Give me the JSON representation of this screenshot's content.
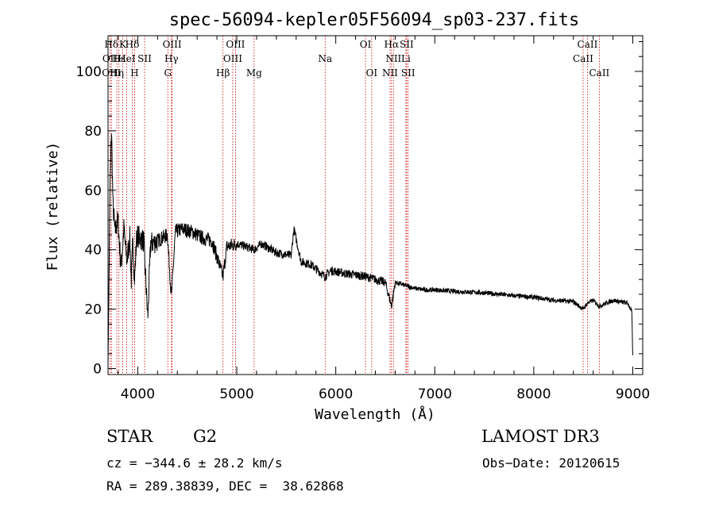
{
  "chart_data": {
    "type": "line",
    "title": "spec-56094-kepler05F56094_sp03-237.fits",
    "xlabel": "Wavelength (Å)",
    "ylabel": "Flux (relative)",
    "xlim": [
      3700,
      9100
    ],
    "ylim": [
      -2,
      112
    ],
    "xticks": [
      4000,
      5000,
      6000,
      7000,
      8000,
      9000
    ],
    "xtick_labels": [
      "4000",
      "5000",
      "6000",
      "7000",
      "8000",
      "9000"
    ],
    "yticks": [
      0,
      20,
      40,
      60,
      80,
      100
    ],
    "ytick_labels": [
      "0",
      "20",
      "40",
      "60",
      "80",
      "100"
    ],
    "grid": false,
    "spectrum_anchor_points": {
      "x": [
        3700,
        3720,
        3735,
        3750,
        3770,
        3800,
        3830,
        3860,
        3890,
        3920,
        3934,
        3950,
        3968,
        3990,
        4020,
        4060,
        4101,
        4130,
        4200,
        4300,
        4340,
        4380,
        4450,
        4550,
        4650,
        4750,
        4861,
        4900,
        5000,
        5100,
        5175,
        5250,
        5400,
        5550,
        5577,
        5650,
        5750,
        5890,
        5950,
        6100,
        6300,
        6400,
        6500,
        6563,
        6600,
        6700,
        6800,
        6900,
        7000,
        7200,
        7500,
        7800,
        8000,
        8200,
        8400,
        8498,
        8542,
        8600,
        8662,
        8800,
        8950,
        8990,
        9000
      ],
      "y": [
        1,
        62,
        80,
        55,
        46,
        50,
        34,
        47,
        36,
        44,
        29,
        42,
        30,
        45,
        44,
        43,
        17,
        42,
        43,
        45,
        24,
        46,
        47,
        46,
        44,
        43,
        31,
        41,
        42,
        41,
        40,
        42,
        39,
        38,
        47,
        36,
        35,
        31,
        33,
        32,
        31,
        30,
        29,
        21,
        29,
        28,
        27,
        26.5,
        26.5,
        26,
        25.5,
        24.5,
        24,
        23,
        22.5,
        20,
        22,
        23,
        21,
        23,
        22,
        19,
        4
      ]
    },
    "spectral_lines": [
      {
        "label": "Hδ",
        "x": 3734,
        "row": 0
      },
      {
        "label": "K",
        "x": 3848,
        "row": 0
      },
      {
        "label": "Hδ",
        "x": 3945,
        "row": 0
      },
      {
        "label": "OIII",
        "x": 4347,
        "row": 0
      },
      {
        "label": "OIII",
        "x": 4987,
        "row": 0
      },
      {
        "label": "OI",
        "x": 6300,
        "row": 0
      },
      {
        "label": "Hα",
        "x": 6563,
        "row": 0
      },
      {
        "label": "SII",
        "x": 6716,
        "row": 0
      },
      {
        "label": "CaII",
        "x": 8542,
        "row": 0
      },
      {
        "label": "OII",
        "x": 3720,
        "row": 1
      },
      {
        "label": "Hε",
        "x": 3810,
        "row": 1
      },
      {
        "label": "HeI",
        "x": 3888,
        "row": 1
      },
      {
        "label": "SII",
        "x": 4069,
        "row": 1
      },
      {
        "label": "Hγ",
        "x": 4340,
        "row": 1
      },
      {
        "label": "OIII",
        "x": 4959,
        "row": 1
      },
      {
        "label": "Na",
        "x": 5893,
        "row": 1
      },
      {
        "label": "NII",
        "x": 6583,
        "row": 1
      },
      {
        "label": "Li",
        "x": 6708,
        "row": 1
      },
      {
        "label": "CaII",
        "x": 8498,
        "row": 1
      },
      {
        "label": "OIII",
        "x": 3734,
        "row": 2
      },
      {
        "label": "Hη",
        "x": 3789,
        "row": 2
      },
      {
        "label": "H",
        "x": 3968,
        "row": 2
      },
      {
        "label": "G",
        "x": 4304,
        "row": 2
      },
      {
        "label": "Hβ",
        "x": 4861,
        "row": 2
      },
      {
        "label": "Mg",
        "x": 5175,
        "row": 2
      },
      {
        "label": "OI",
        "x": 6363,
        "row": 2
      },
      {
        "label": "NII",
        "x": 6548,
        "row": 2
      },
      {
        "label": "SII",
        "x": 6731,
        "row": 2
      },
      {
        "label": "CaII",
        "x": 8662,
        "row": 2
      }
    ]
  },
  "info": {
    "class": "STAR",
    "subclass": "G2",
    "survey": "LAMOST DR3",
    "cz": "cz = −344.6 ± 28.2 km/s",
    "obsdate": "Obs−Date: 20120615",
    "radec": "RA = 289.38839, DEC =  38.62868"
  },
  "colors": {
    "line_marker": "#cc0000",
    "spectrum": "#000000",
    "axes": "#000000"
  }
}
